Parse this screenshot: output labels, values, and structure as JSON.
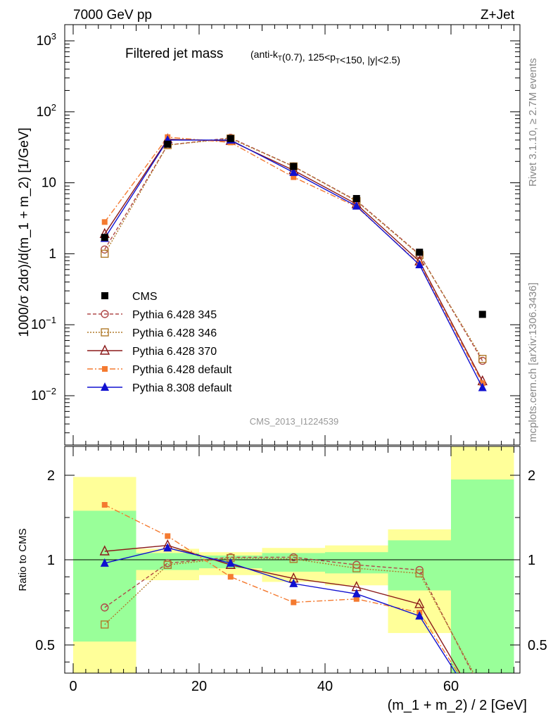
{
  "header": {
    "energy_label": "7000 GeV pp",
    "process_label": "Z+Jet"
  },
  "chart_data": [
    {
      "type": "line",
      "title": "Filtered jet mass",
      "subtitle": "(anti-k_T(0.7), 125<p_T<150, |y|<2.5)",
      "ylabel": "1000/σ 2dσ)/d(m_1 + m_2) [1/GeV]",
      "xlabel": "",
      "yscale": "log",
      "ylim": [
        0.002,
        1500
      ],
      "xlim": [
        -2,
        70
      ],
      "yticks": [
        {
          "value": 1000,
          "base": "10",
          "exp": "3"
        },
        {
          "value": 100,
          "base": "10",
          "exp": "2"
        },
        {
          "value": 10,
          "base": "10",
          "exp": ""
        },
        {
          "value": 1,
          "base": "1",
          "exp": ""
        },
        {
          "value": 0.1,
          "base": "10",
          "exp": "−1"
        },
        {
          "value": 0.01,
          "base": "10",
          "exp": "−2"
        }
      ],
      "watermark": "CMS_2013_I1224539",
      "legend_position": "lower-left",
      "x": [
        5,
        15,
        25,
        35,
        45,
        55,
        65
      ],
      "series": [
        {
          "name": "CMS",
          "color": "#000000",
          "marker": "square",
          "values": [
            1.7,
            35,
            42,
            17,
            6.0,
            1.05,
            0.14
          ]
        },
        {
          "name": "Pythia 6.428 345",
          "color": "#b04a4a",
          "marker": "open-circle",
          "dash": "5,3",
          "values": [
            1.15,
            34,
            43,
            17,
            5.6,
            0.98,
            0.031
          ]
        },
        {
          "name": "Pythia 6.428 346",
          "color": "#b07a2a",
          "marker": "open-square",
          "dash": "2,2",
          "values": [
            1.0,
            34,
            42,
            17,
            5.5,
            0.96,
            0.033
          ]
        },
        {
          "name": "Pythia 6.428 370",
          "color": "#8b1a1a",
          "marker": "open-triangle",
          "dash": "",
          "values": [
            1.9,
            41,
            39,
            15,
            5.0,
            0.78,
            0.016
          ]
        },
        {
          "name": "Pythia 6.428 default",
          "color": "#f47a30",
          "marker": "filled-square-small",
          "dash": "8,3,2,3",
          "values": [
            2.8,
            44,
            37,
            12,
            4.6,
            0.72,
            0.015
          ]
        },
        {
          "name": "Pythia 8.308 default",
          "color": "#1010d0",
          "marker": "filled-triangle",
          "dash": "",
          "values": [
            1.65,
            40,
            40,
            14,
            4.7,
            0.7,
            0.013
          ]
        }
      ]
    },
    {
      "type": "line",
      "title": "",
      "ylabel": "Ratio to CMS",
      "xlabel": "(m_1 + m_2) / 2 [GeV]",
      "ylim": [
        0.35,
        2.3
      ],
      "xlim": [
        -2,
        70
      ],
      "yticks": [
        0.5,
        1,
        2
      ],
      "xticks": [
        0,
        20,
        40,
        60
      ],
      "bands": [
        {
          "x0": 0,
          "x1": 10,
          "inner": [
            0.52,
            1.58
          ],
          "outer": [
            0.3,
            1.98
          ]
        },
        {
          "x0": 10,
          "x1": 20,
          "inner": [
            0.94,
            1.08
          ],
          "outer": [
            0.88,
            1.13
          ]
        },
        {
          "x0": 20,
          "x1": 30,
          "inner": [
            0.95,
            1.05
          ],
          "outer": [
            0.91,
            1.09
          ]
        },
        {
          "x0": 30,
          "x1": 40,
          "inner": [
            0.93,
            1.08
          ],
          "outer": [
            0.87,
            1.14
          ]
        },
        {
          "x0": 40,
          "x1": 50,
          "inner": [
            0.92,
            1.09
          ],
          "outer": [
            0.85,
            1.17
          ]
        },
        {
          "x0": 50,
          "x1": 60,
          "inner": [
            0.82,
            1.23
          ],
          "outer": [
            0.57,
            1.36
          ]
        },
        {
          "x0": 60,
          "x1": 70,
          "inner": [
            0.3,
            1.95
          ],
          "outer": [
            0.3,
            2.4
          ]
        }
      ],
      "x": [
        5,
        15,
        25,
        35,
        45,
        55,
        65
      ],
      "series": [
        {
          "name": "Pythia 6.428 345",
          "values": [
            0.72,
            0.98,
            1.03,
            1.03,
            0.97,
            0.94,
            0.22
          ]
        },
        {
          "name": "Pythia 6.428 346",
          "values": [
            0.62,
            0.97,
            1.02,
            1.01,
            0.95,
            0.92,
            0.24
          ]
        },
        {
          "name": "Pythia 6.428 370",
          "values": [
            1.1,
            1.17,
            0.97,
            0.89,
            0.84,
            0.74,
            0.11
          ]
        },
        {
          "name": "Pythia 6.428 default",
          "values": [
            1.65,
            1.28,
            0.9,
            0.75,
            0.77,
            0.69,
            0.11
          ]
        },
        {
          "name": "Pythia 8.308 default",
          "values": [
            0.98,
            1.14,
            0.98,
            0.86,
            0.8,
            0.67,
            0.09
          ]
        }
      ]
    }
  ],
  "side_labels": {
    "rivet": "Rivet 3.1.10, ≥ 2.7M events",
    "mcplots": "mcplots.cern.ch [arXiv:1306.3436]"
  }
}
